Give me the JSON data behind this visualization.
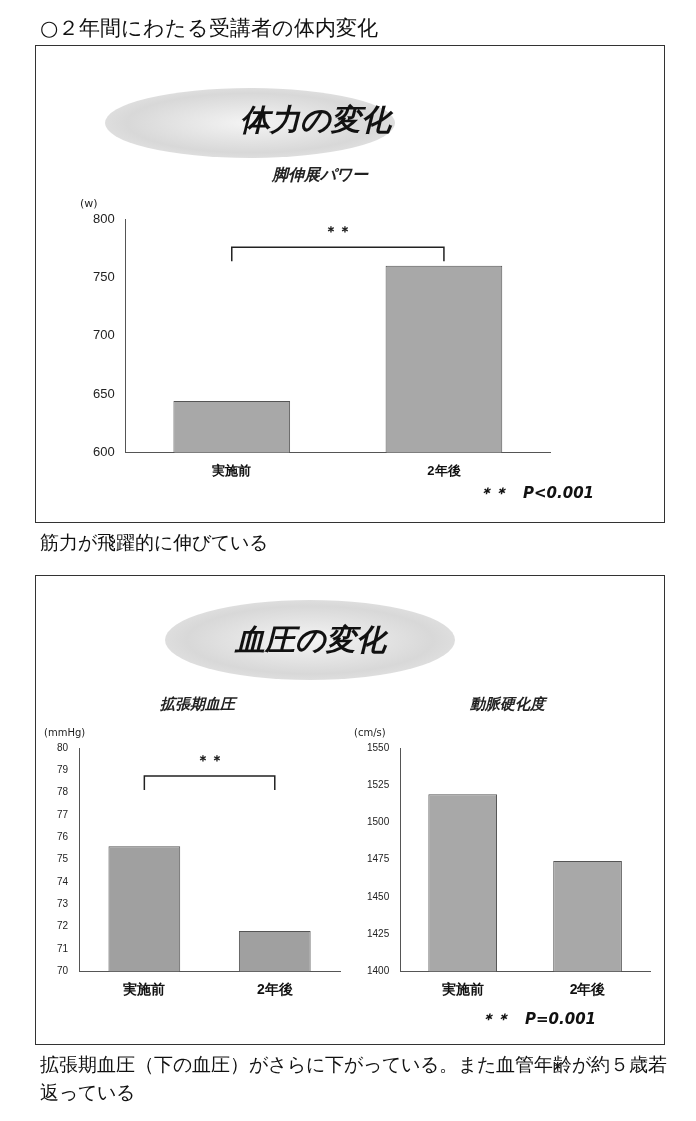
{
  "chart_data": [
    {
      "type": "bar",
      "title": "脚伸展パワー",
      "ylabel": "(w)",
      "categories": [
        "実施前",
        "2年後"
      ],
      "values": [
        644,
        760
      ],
      "color": "#a8a8a8",
      "ylim": [
        600,
        800
      ],
      "yticks": [
        600,
        650,
        700,
        750,
        800
      ],
      "annotations": [
        "○２年間にわたる受講者の体内変化",
        "体力の変化",
        "＊＊",
        "＊＊　P<0.001",
        "筋力が飛躍的に伸びている"
      ]
    },
    {
      "type": "bar",
      "title": "拡張期血圧",
      "ylabel": "(mmHg)",
      "categories": [
        "実施前",
        "2年後"
      ],
      "values": [
        75.6,
        71.8
      ],
      "color": "#a0a0a0",
      "ylim": [
        70,
        80
      ],
      "yticks": [
        70,
        71,
        72,
        73,
        74,
        75,
        76,
        77,
        78,
        79,
        80
      ],
      "annotations": [
        "血圧の変化",
        "＊＊"
      ]
    },
    {
      "type": "bar",
      "title": "動脈硬化度",
      "ylabel": "(cm/s)",
      "categories": [
        "実施前",
        "2年後"
      ],
      "values": [
        1519,
        1474
      ],
      "color": "#a8a8a8",
      "ylim": [
        1400,
        1550
      ],
      "yticks": [
        1400,
        1425,
        1450,
        1475,
        1500,
        1525,
        1550
      ],
      "annotations": [
        "＊＊　P=0.001",
        "拡張期血圧（下の血圧）がさらに下がっている。また血管年齢が約５歳若返っている"
      ]
    }
  ]
}
